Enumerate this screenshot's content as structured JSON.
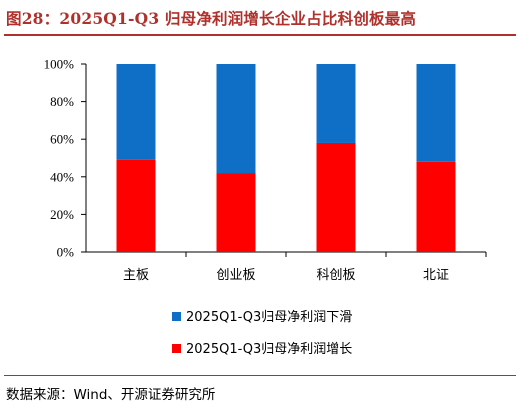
{
  "title": "图28：2025Q1-Q3 归母净利润增长企业占比科创板最高",
  "source": "数据来源：Wind、开源证券研究所",
  "chart_data": {
    "type": "bar",
    "stacked": true,
    "percent": true,
    "categories": [
      "主板",
      "创业板",
      "科创板",
      "北证"
    ],
    "series": [
      {
        "name": "2025Q1-Q3归母净利润增长",
        "values": [
          49,
          42,
          58,
          48
        ],
        "color": "#ff0000"
      },
      {
        "name": "2025Q1-Q3归母净利润下滑",
        "values": [
          51,
          58,
          42,
          52
        ],
        "color": "#0f6fc6"
      }
    ],
    "ylim": [
      0,
      100
    ],
    "yticks": [
      "0%",
      "20%",
      "40%",
      "60%",
      "80%",
      "100%"
    ],
    "legend": "bottom",
    "grid": false
  }
}
